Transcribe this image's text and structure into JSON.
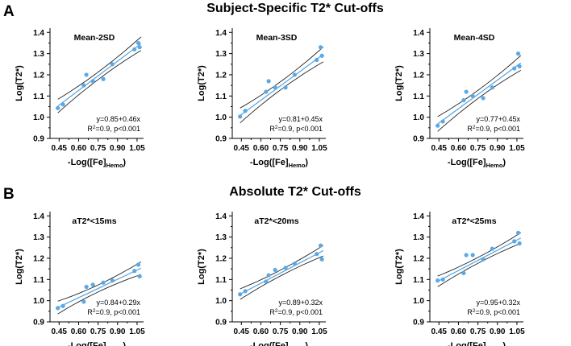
{
  "figure": {
    "sections": [
      {
        "letter": "A",
        "title": "Subject-Specific T2* Cut-offs"
      },
      {
        "letter": "B",
        "title": "Absolute T2* Cut-offs"
      }
    ]
  },
  "chart_data": [
    {
      "type": "scatter",
      "title": "Mean-2SD",
      "xlabel": "-Log([Fe]Hemo)",
      "ylabel": "Log(T2*)",
      "xlim": [
        0.38,
        1.1
      ],
      "ylim": [
        0.9,
        1.42
      ],
      "xticks": [
        "0.45",
        "0.60",
        "0.75",
        "0.90",
        "1.05"
      ],
      "yticks": [
        "0.9",
        "1.0",
        "1.1",
        "1.2",
        "1.3",
        "1.4"
      ],
      "points": {
        "x": [
          0.44,
          0.48,
          0.64,
          0.66,
          0.71,
          0.79,
          0.86,
          1.03,
          1.06,
          1.07
        ],
        "y": [
          1.043,
          1.06,
          1.15,
          1.2,
          1.17,
          1.18,
          1.25,
          1.32,
          1.35,
          1.33
        ]
      },
      "fit": {
        "intercept": 0.85,
        "slope": 0.46
      },
      "ci_band": 0.032,
      "fit_range": [
        0.44,
        1.08
      ],
      "annotation": [
        "y=0.85+0.46x",
        "R2=0.9, p<0.001"
      ],
      "colors": {
        "points": "#5aa9e6",
        "fit": "#5aa9e6",
        "ci": "#222222"
      }
    },
    {
      "type": "scatter",
      "title": "Mean-3SD",
      "xlabel": "-Log([Fe]Hemo)",
      "ylabel": "Log(T2*)",
      "xlim": [
        0.38,
        1.1
      ],
      "ylim": [
        0.9,
        1.42
      ],
      "xticks": [
        "0.45",
        "0.60",
        "0.75",
        "0.90",
        "1.05"
      ],
      "yticks": [
        "0.9",
        "1.0",
        "1.1",
        "1.2",
        "1.3",
        "1.4"
      ],
      "points": {
        "x": [
          0.44,
          0.48,
          0.64,
          0.66,
          0.71,
          0.79,
          0.86,
          1.03,
          1.06,
          1.07
        ],
        "y": [
          1.003,
          1.03,
          1.12,
          1.17,
          1.14,
          1.14,
          1.2,
          1.27,
          1.33,
          1.29
        ]
      },
      "fit": {
        "intercept": 0.81,
        "slope": 0.45
      },
      "ci_band": 0.035,
      "fit_range": [
        0.44,
        1.08
      ],
      "annotation": [
        "y=0.81+0.45x",
        "R2=0.9, p<0.001"
      ],
      "colors": {
        "points": "#5aa9e6",
        "fit": "#5aa9e6",
        "ci": "#222222"
      }
    },
    {
      "type": "scatter",
      "title": "Mean-4SD",
      "xlabel": "-Log([Fe]Hemo)",
      "ylabel": "Log(T2*)",
      "xlim": [
        0.38,
        1.1
      ],
      "ylim": [
        0.9,
        1.42
      ],
      "xticks": [
        "0.45",
        "0.60",
        "0.75",
        "0.90",
        "1.05"
      ],
      "yticks": [
        "0.9",
        "1.0",
        "1.1",
        "1.2",
        "1.3",
        "1.4"
      ],
      "points": {
        "x": [
          0.44,
          0.48,
          0.64,
          0.66,
          0.71,
          0.79,
          0.86,
          1.03,
          1.06,
          1.07
        ],
        "y": [
          0.96,
          0.98,
          1.08,
          1.12,
          1.1,
          1.09,
          1.14,
          1.23,
          1.3,
          1.24
        ]
      },
      "fit": {
        "intercept": 0.77,
        "slope": 0.45
      },
      "ci_band": 0.035,
      "fit_range": [
        0.44,
        1.08
      ],
      "annotation": [
        "y=0.77+0.45x",
        "R2=0.9, p<0.001"
      ],
      "colors": {
        "points": "#5aa9e6",
        "fit": "#5aa9e6",
        "ci": "#222222"
      }
    },
    {
      "type": "scatter",
      "title": "aT2*<15ms",
      "xlabel": "-Log([Fe]Hemo)",
      "ylabel": "Log(T2*)",
      "xlim": [
        0.38,
        1.1
      ],
      "ylim": [
        0.9,
        1.42
      ],
      "xticks": [
        "0.45",
        "0.60",
        "0.75",
        "0.90",
        "1.05"
      ],
      "yticks": [
        "0.9",
        "1.0",
        "1.1",
        "1.2",
        "1.3",
        "1.4"
      ],
      "points": {
        "x": [
          0.44,
          0.48,
          0.64,
          0.66,
          0.71,
          0.79,
          0.86,
          1.03,
          1.06,
          1.07
        ],
        "y": [
          0.965,
          0.975,
          0.995,
          1.065,
          1.075,
          1.085,
          1.095,
          1.14,
          1.17,
          1.115
        ]
      },
      "fit": {
        "intercept": 0.84,
        "slope": 0.29
      },
      "ci_band": 0.03,
      "fit_range": [
        0.44,
        1.08
      ],
      "annotation": [
        "y=0.84+0.29x",
        "R2=0.9, p<0.001"
      ],
      "colors": {
        "points": "#5aa9e6",
        "fit": "#5aa9e6",
        "ci": "#222222"
      }
    },
    {
      "type": "scatter",
      "title": "aT2*<20ms",
      "xlabel": "-Log([Fe]Hemo)",
      "ylabel": "Log(T2*)",
      "xlim": [
        0.38,
        1.1
      ],
      "ylim": [
        0.9,
        1.42
      ],
      "xticks": [
        "0.45",
        "0.60",
        "0.75",
        "0.90",
        "1.05"
      ],
      "yticks": [
        "0.9",
        "1.0",
        "1.1",
        "1.2",
        "1.3",
        "1.4"
      ],
      "points": {
        "x": [
          0.44,
          0.48,
          0.64,
          0.66,
          0.71,
          0.79,
          0.86,
          1.03,
          1.06,
          1.07
        ],
        "y": [
          1.03,
          1.045,
          1.09,
          1.12,
          1.145,
          1.155,
          1.175,
          1.22,
          1.26,
          1.195
        ]
      },
      "fit": {
        "intercept": 0.89,
        "slope": 0.32
      },
      "ci_band": 0.025,
      "fit_range": [
        0.44,
        1.08
      ],
      "annotation": [
        "y=0.89+0.32x",
        "R2=0.9, p<0.001"
      ],
      "colors": {
        "points": "#5aa9e6",
        "fit": "#5aa9e6",
        "ci": "#222222"
      }
    },
    {
      "type": "scatter",
      "title": "aT2*<25ms",
      "xlabel": "-Log([Fe]Hemo)",
      "ylabel": "Log(T2*)",
      "xlim": [
        0.38,
        1.1
      ],
      "ylim": [
        0.9,
        1.42
      ],
      "xticks": [
        "0.45",
        "0.60",
        "0.75",
        "0.90",
        "1.05"
      ],
      "yticks": [
        "0.9",
        "1.0",
        "1.1",
        "1.2",
        "1.3",
        "1.4"
      ],
      "points": {
        "x": [
          0.44,
          0.48,
          0.64,
          0.66,
          0.71,
          0.79,
          0.86,
          1.03,
          1.06,
          1.07
        ],
        "y": [
          1.095,
          1.1,
          1.13,
          1.215,
          1.215,
          1.195,
          1.245,
          1.28,
          1.32,
          1.27
        ]
      },
      "fit": {
        "intercept": 0.95,
        "slope": 0.32
      },
      "ci_band": 0.025,
      "fit_range": [
        0.44,
        1.08
      ],
      "annotation": [
        "y=0.95+0.32x",
        "R2=0.9, p<0.001"
      ],
      "colors": {
        "points": "#5aa9e6",
        "fit": "#5aa9e6",
        "ci": "#222222"
      }
    }
  ]
}
